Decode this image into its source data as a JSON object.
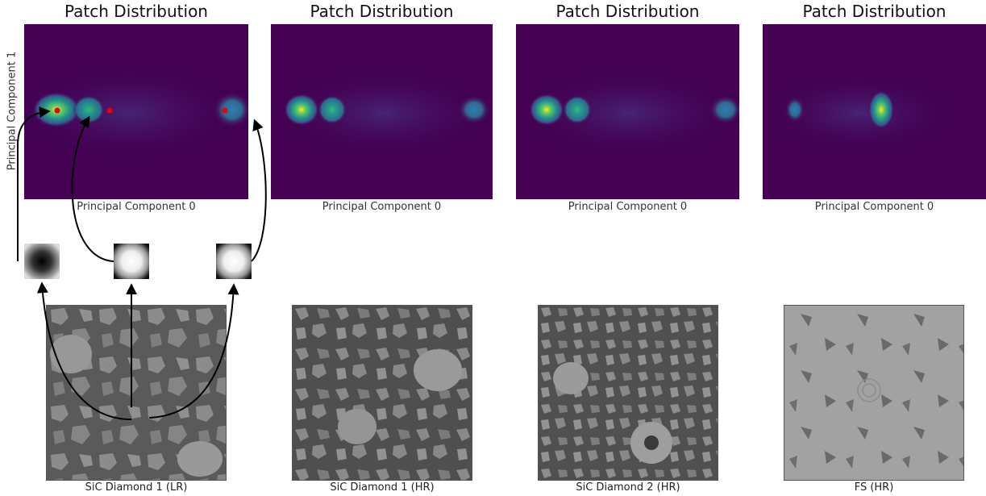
{
  "figure": {
    "panels": [
      {
        "title": "Patch Distribution",
        "xlabel": "Principal Component 0",
        "ylabel": "Principal Component 1",
        "caption": "SiC Diamond 1 (LR)"
      },
      {
        "title": "Patch Distribution",
        "xlabel": "Principal Component 0",
        "ylabel": "",
        "caption": "SiC Diamond 1 (HR)"
      },
      {
        "title": "Patch Distribution",
        "xlabel": "Principal Component 0",
        "ylabel": "",
        "caption": "SiC Diamond 2 (HR)"
      },
      {
        "title": "Patch Distribution",
        "xlabel": "Principal Component 0",
        "ylabel": "",
        "caption": "FS (HR)"
      }
    ],
    "colors": {
      "background": "#440154",
      "blob_outer": "#31688e",
      "blob_mid": "#21918c",
      "blob_peak": "#fde725",
      "marker": "#e8000b",
      "arrow": "#000000"
    },
    "patches": [
      {
        "name": "dark-center-patch"
      },
      {
        "name": "bright-center-patch"
      },
      {
        "name": "bright-center-patch-2"
      }
    ]
  }
}
